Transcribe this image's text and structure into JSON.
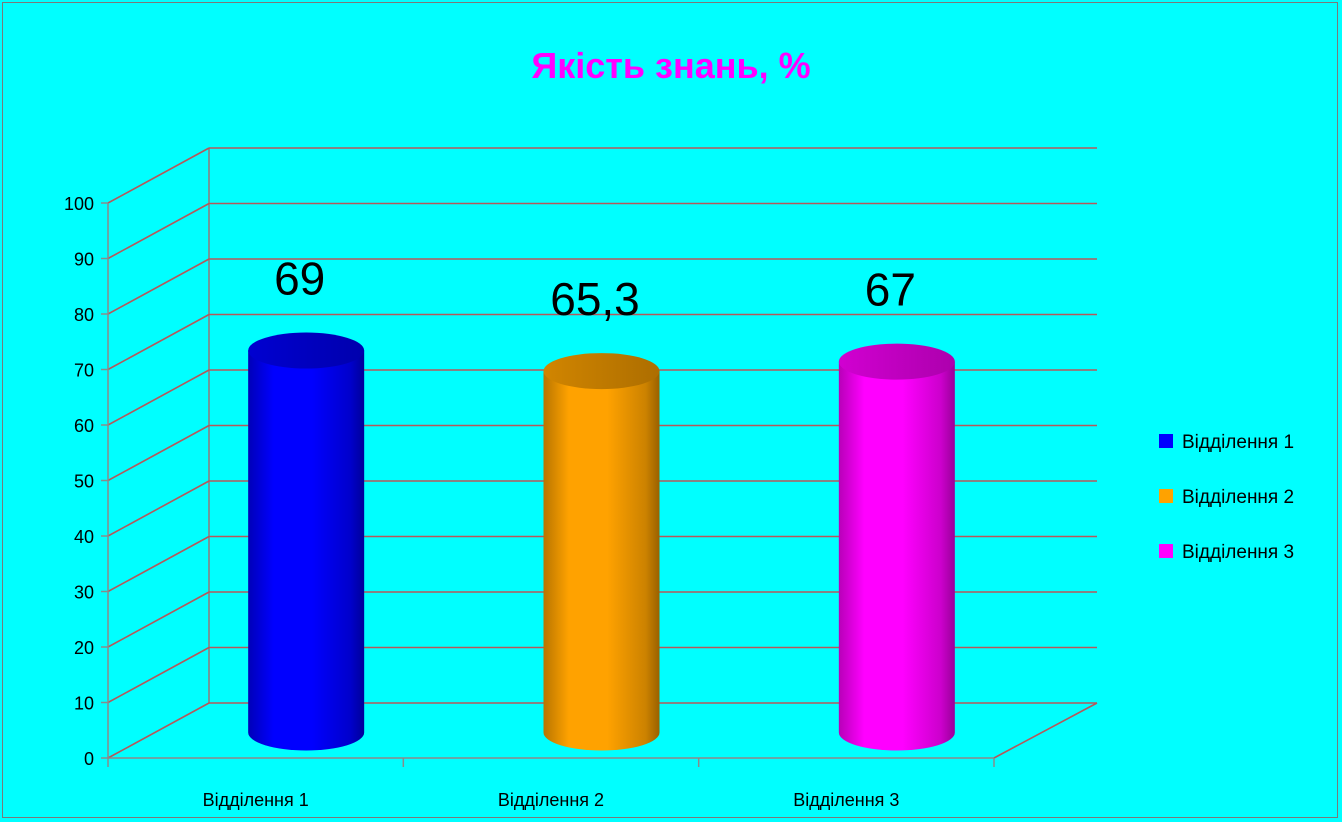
{
  "chart_data": {
    "type": "bar",
    "title": "Якість знань, %",
    "title_color": "#ff00ff",
    "background": "#00ffff",
    "categories": [
      "Відділення 1",
      "Відділення 2",
      "Відділення 3"
    ],
    "values": [
      69,
      65.3,
      67
    ],
    "value_labels": [
      "69",
      "65,3",
      "67"
    ],
    "colors": [
      "#0000ff",
      "#ffa200",
      "#ff00ff"
    ],
    "legend": [
      "Відділення 1",
      "Відділення 2",
      "Відділення 3"
    ],
    "legend_position": "right",
    "ylim": [
      0,
      100
    ],
    "yticks": [
      0,
      10,
      20,
      30,
      40,
      50,
      60,
      70,
      80,
      90,
      100
    ],
    "grid": true,
    "bar_shape": "cylinder-3d",
    "xlabel": "",
    "ylabel": ""
  }
}
